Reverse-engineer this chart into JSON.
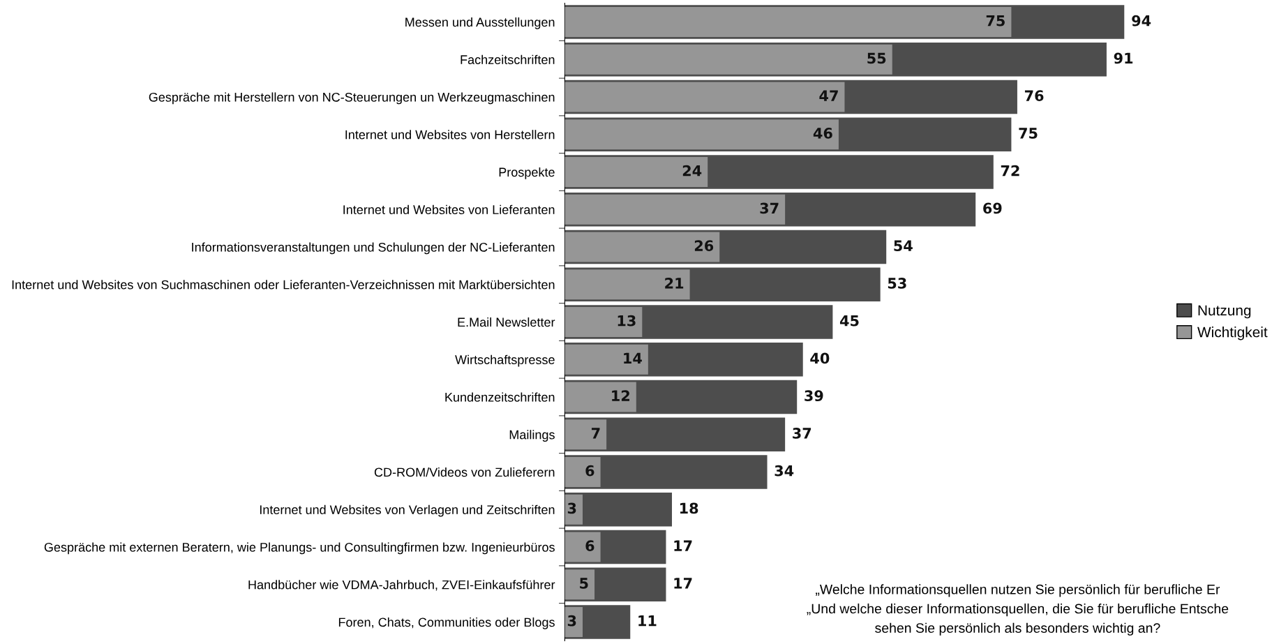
{
  "chart_data": {
    "type": "bar",
    "orientation": "horizontal",
    "categories": [
      "Messen und Ausstellungen",
      "Fachzeitschriften",
      "Gespräche mit Herstellern von NC-Steuerungen un Werkzeugmaschinen",
      "Internet und Websites von Herstellern",
      "Prospekte",
      "Internet und Websites von Lieferanten",
      "Informationsveranstaltungen und Schulungen der NC-Lieferanten",
      "Internet und Websites von Suchmaschinen oder Lieferanten-Verzeichnissen mit Marktübersichten",
      "E.Mail Newsletter",
      "Wirtschaftspresse",
      "Kundenzeitschriften",
      "Mailings",
      "CD-ROM/Videos von Zulieferern",
      "Internet und Websites von Verlagen und Zeitschriften",
      "Gespräche mit externen Beratern, wie Planungs- und Consultingfirmen bzw. Ingenieurbüros",
      "Handbücher wie VDMA-Jahrbuch, ZVEI-Einkaufsführer",
      "Foren, Chats, Communities oder Blogs"
    ],
    "series": [
      {
        "name": "Nutzung",
        "color": "#4d4d4d",
        "values": [
          94,
          91,
          76,
          75,
          72,
          69,
          54,
          53,
          45,
          40,
          39,
          37,
          34,
          18,
          17,
          17,
          11
        ]
      },
      {
        "name": "Wichtigkeit",
        "color": "#969696",
        "values": [
          75,
          55,
          47,
          46,
          24,
          37,
          26,
          21,
          13,
          14,
          12,
          7,
          6,
          3,
          6,
          5,
          3
        ]
      }
    ],
    "data_labels": true,
    "legend": "right",
    "grid": false,
    "annotations": [
      "„Welche Informationsquellen nutzen Sie persönlich für berufliche Er",
      "„Und welche dieser Informationsquellen, die Sie für berufliche Entsche",
      "sehen Sie persönlich als besonders wichtig an?"
    ]
  }
}
